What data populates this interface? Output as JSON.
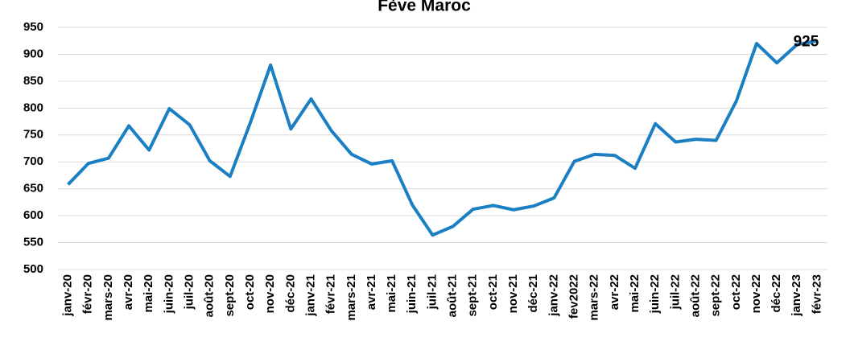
{
  "chart_data": {
    "type": "line",
    "title": "Fève Maroc",
    "categories": [
      "janv-20",
      "févr-20",
      "mars-20",
      "avr-20",
      "mai-20",
      "juin-20",
      "juil-20",
      "août-20",
      "sept-20",
      "oct-20",
      "nov-20",
      "déc-20",
      "janv-21",
      "févr-21",
      "mars-21",
      "avr-21",
      "mai-21",
      "juin-21",
      "juil-21",
      "août-21",
      "sept-21",
      "oct-21",
      "nov-21",
      "déc-21",
      "janv-22",
      "fev2022",
      "mars-22",
      "avr-22",
      "mai-22",
      "juin-22",
      "juil-22",
      "août-22",
      "sept-22",
      "oct-22",
      "nov-22",
      "déc-22",
      "janv-23",
      "févr-23"
    ],
    "values": [
      658,
      697,
      707,
      767,
      722,
      799,
      769,
      702,
      673,
      773,
      880,
      761,
      817,
      758,
      714,
      696,
      702,
      620,
      564,
      580,
      612,
      619,
      611,
      618,
      633,
      701,
      714,
      712,
      688,
      771,
      737,
      742,
      740,
      813,
      920,
      884,
      918,
      925
    ],
    "color": "#1b7fc3",
    "label_last": true,
    "ylim": [
      500,
      950
    ],
    "yticks": [
      500,
      550,
      600,
      650,
      700,
      750,
      800,
      850,
      900,
      950
    ],
    "grid": true
  }
}
